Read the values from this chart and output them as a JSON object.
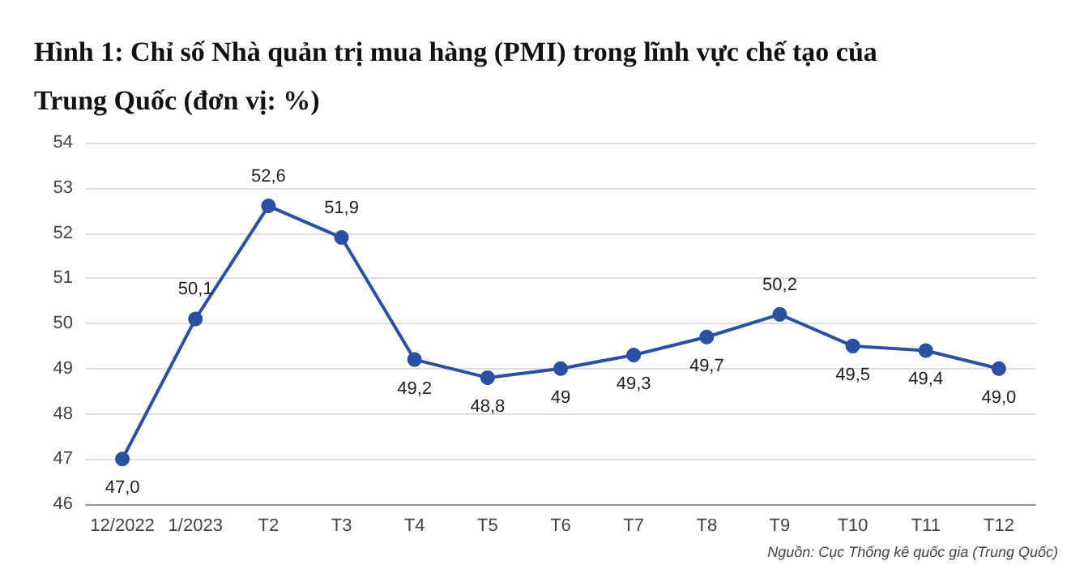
{
  "chart_data": {
    "type": "line",
    "title": "Hình 1: Chỉ số Nhà quản trị mua hàng (PMI) trong lĩnh vực chế tạo của Trung Quốc (đơn vị: %)",
    "categories": [
      "12/2022",
      "1/2023",
      "T2",
      "T3",
      "T4",
      "T5",
      "T6",
      "T7",
      "T8",
      "T9",
      "T10",
      "T11",
      "T12"
    ],
    "series": [
      {
        "color": "#2a4fa3",
        "values": [
          47.0,
          50.1,
          52.6,
          51.9,
          49.2,
          48.8,
          49,
          49.3,
          49.7,
          50.2,
          49.5,
          49.4,
          49.0
        ],
        "value_labels": [
          "47,0",
          "50,1",
          "52,6",
          "51,9",
          "49,2",
          "48,8",
          "49",
          "49,3",
          "49,7",
          "50,2",
          "49,5",
          "49,4",
          "49,0"
        ]
      }
    ],
    "ylim": [
      46,
      54
    ],
    "yticks": [
      46,
      47,
      48,
      49,
      50,
      51,
      52,
      53,
      54
    ],
    "grid": "y",
    "marker": "circle",
    "line_style": "solid",
    "annotations": [
      "Nguồn: Cục Thống kê quốc gia (Trung Quốc)"
    ]
  }
}
